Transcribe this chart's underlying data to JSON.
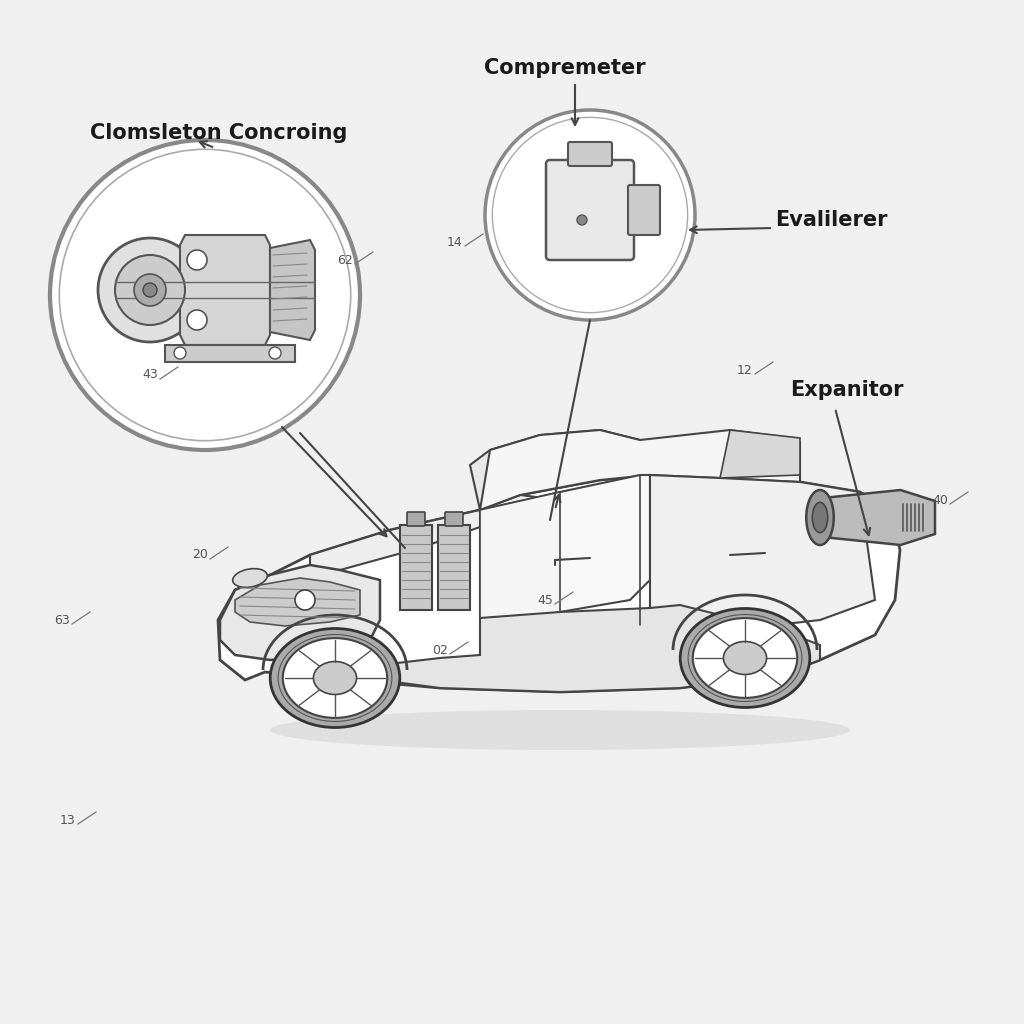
{
  "bg_color": "#f0f0f0",
  "labels": {
    "clomsleton": "Clomsleton Concroing",
    "compremeter": "Compremeter",
    "evalilerer": "Evalilerer",
    "expanitor": "Expanitor"
  },
  "label_fontsize": 15,
  "number_fontsize": 9,
  "line_color": "#444444",
  "text_color": "#1a1a1a",
  "bg_white": "#ffffff",
  "numbers": [
    [
      "13",
      68,
      820
    ],
    [
      "63",
      62,
      620
    ],
    [
      "20",
      200,
      555
    ],
    [
      "02",
      440,
      650
    ],
    [
      "45",
      545,
      600
    ],
    [
      "43",
      150,
      375
    ],
    [
      "62",
      345,
      260
    ],
    [
      "14",
      455,
      242
    ],
    [
      "40",
      940,
      500
    ],
    [
      "12",
      745,
      370
    ]
  ]
}
